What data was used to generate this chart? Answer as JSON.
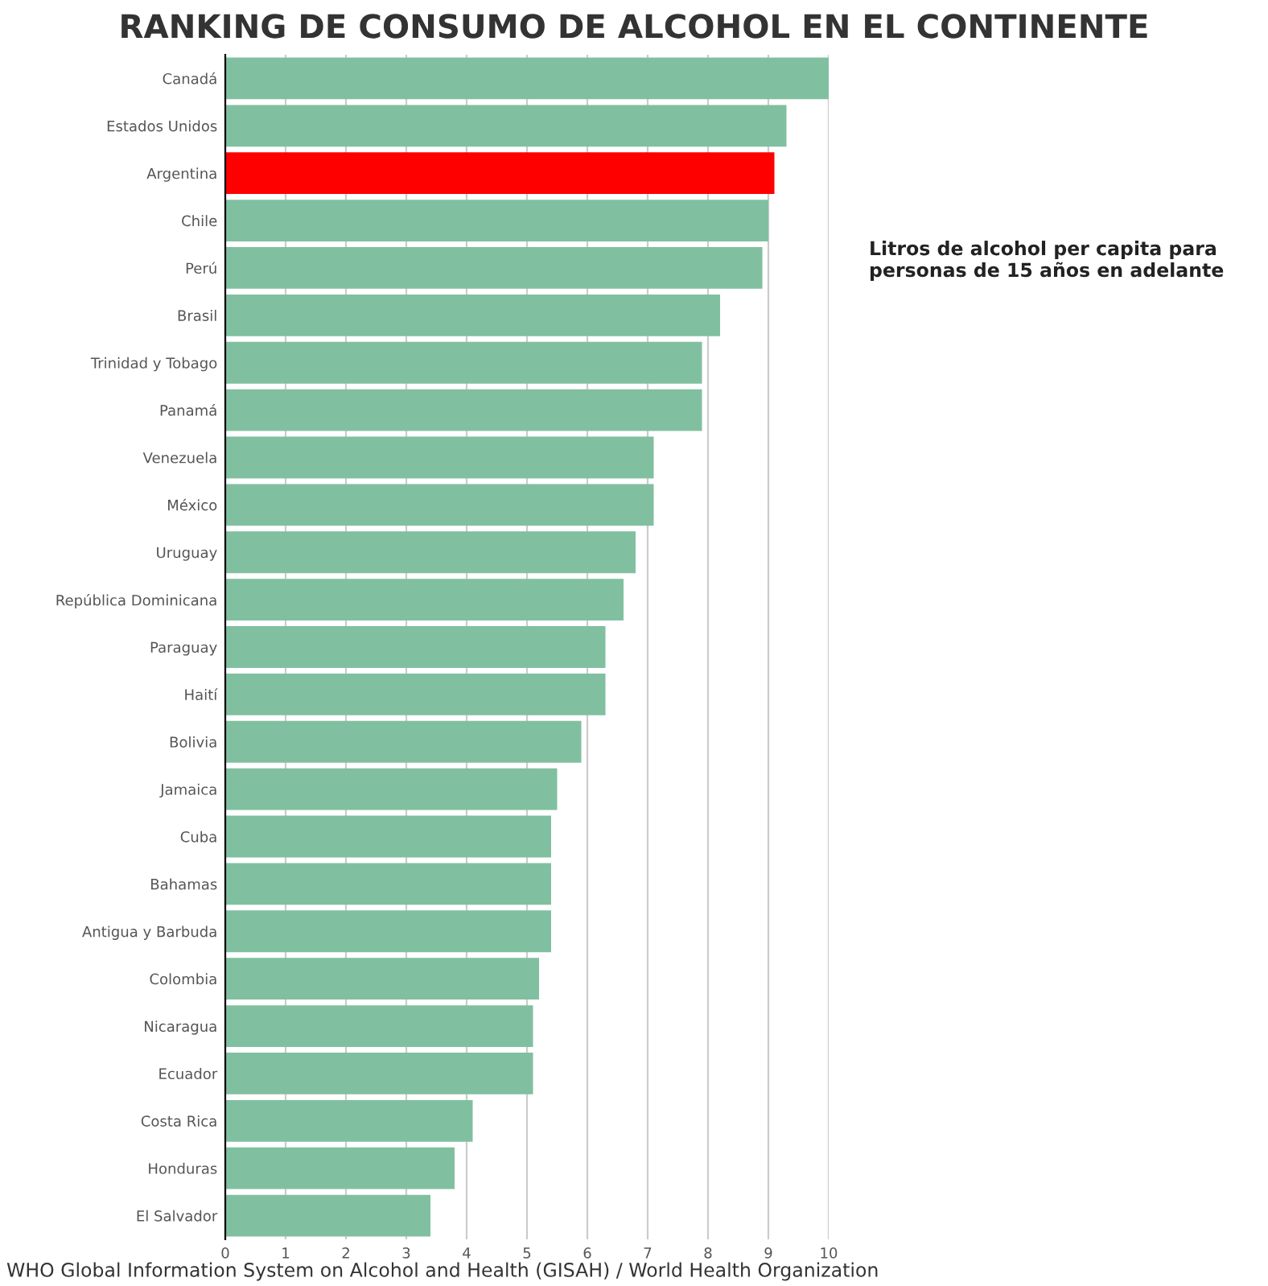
{
  "chart_data": {
    "type": "bar",
    "orientation": "horizontal",
    "title": "RANKING DE CONSUMO DE ALCOHOL EN EL CONTINENTE",
    "categories": [
      "Canadá",
      "Estados Unidos",
      "Argentina",
      "Chile",
      "Perú",
      "Brasil",
      "Trinidad y Tobago",
      "Panamá",
      "Venezuela",
      "México",
      "Uruguay",
      "República Dominicana",
      "Paraguay",
      "Haití",
      "Bolivia",
      "Jamaica",
      "Cuba",
      "Bahamas",
      "Antigua y Barbuda",
      "Colombia",
      "Nicaragua",
      "Ecuador",
      "Costa Rica",
      "Honduras",
      "El Salvador"
    ],
    "values": [
      10.0,
      9.3,
      9.1,
      9.0,
      8.9,
      8.2,
      7.9,
      7.9,
      7.1,
      7.1,
      6.8,
      6.6,
      6.3,
      6.3,
      5.9,
      5.5,
      5.4,
      5.4,
      5.4,
      5.2,
      5.1,
      5.1,
      4.1,
      3.8,
      3.4
    ],
    "colors": [
      "#80c0a0",
      "#80c0a0",
      "#ff0000",
      "#80c0a0",
      "#80c0a0",
      "#80c0a0",
      "#80c0a0",
      "#80c0a0",
      "#80c0a0",
      "#80c0a0",
      "#80c0a0",
      "#80c0a0",
      "#80c0a0",
      "#80c0a0",
      "#80c0a0",
      "#80c0a0",
      "#80c0a0",
      "#80c0a0",
      "#80c0a0",
      "#80c0a0",
      "#80c0a0",
      "#80c0a0",
      "#80c0a0",
      "#80c0a0",
      "#80c0a0"
    ],
    "xlim": [
      0,
      10
    ],
    "xticks": [
      0,
      1,
      2,
      3,
      4,
      5,
      6,
      7,
      8,
      9,
      10
    ],
    "grid": "x",
    "annotations": [
      "Litros de alcohol per capita para personas de 15 años en adelante",
      "WHO Global Information System on Alcohol and Health (GISAH) / World Health Organization"
    ]
  }
}
